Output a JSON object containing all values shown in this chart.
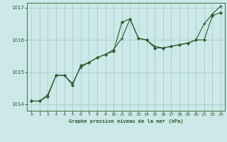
{
  "title": "Graphe pression niveau de la mer (hPa)",
  "background_color": "#cce8e8",
  "grid_color": "#aacccc",
  "line_color": "#2d5a2d",
  "x_min": -0.5,
  "x_max": 23.5,
  "y_min": 1013.8,
  "y_max": 1017.15,
  "yticks": [
    1014,
    1015,
    1016,
    1017
  ],
  "xticks": [
    0,
    1,
    2,
    3,
    4,
    5,
    6,
    7,
    8,
    9,
    10,
    11,
    12,
    13,
    14,
    15,
    16,
    17,
    18,
    19,
    20,
    21,
    22,
    23
  ],
  "series_jagged": [
    [
      0,
      1014.1
    ],
    [
      1,
      1014.1
    ],
    [
      2,
      1014.3
    ],
    [
      3,
      1014.9
    ],
    [
      4,
      1014.9
    ],
    [
      5,
      1014.65
    ],
    [
      6,
      1015.15
    ],
    [
      7,
      1015.3
    ],
    [
      8,
      1015.45
    ],
    [
      9,
      1015.55
    ],
    [
      10,
      1015.7
    ],
    [
      11,
      1016.05
    ],
    [
      12,
      1016.65
    ],
    [
      13,
      1016.05
    ],
    [
      14,
      1016.0
    ],
    [
      15,
      1015.8
    ],
    [
      16,
      1015.75
    ],
    [
      17,
      1015.8
    ],
    [
      18,
      1015.85
    ],
    [
      19,
      1015.9
    ],
    [
      20,
      1016.0
    ],
    [
      21,
      1016.5
    ],
    [
      22,
      1016.8
    ],
    [
      23,
      1017.05
    ]
  ],
  "series_smooth": [
    [
      0,
      1014.1
    ],
    [
      1,
      1014.1
    ],
    [
      2,
      1014.25
    ],
    [
      3,
      1014.9
    ],
    [
      4,
      1014.9
    ],
    [
      5,
      1014.6
    ],
    [
      6,
      1015.2
    ],
    [
      7,
      1015.3
    ],
    [
      8,
      1015.45
    ],
    [
      9,
      1015.55
    ],
    [
      10,
      1015.65
    ],
    [
      11,
      1016.55
    ],
    [
      12,
      1016.65
    ],
    [
      13,
      1016.05
    ],
    [
      14,
      1016.0
    ],
    [
      15,
      1015.75
    ],
    [
      16,
      1015.75
    ],
    [
      17,
      1015.8
    ],
    [
      18,
      1015.85
    ],
    [
      19,
      1015.9
    ],
    [
      20,
      1016.0
    ],
    [
      21,
      1016.0
    ],
    [
      22,
      1016.75
    ],
    [
      23,
      1016.85
    ]
  ]
}
